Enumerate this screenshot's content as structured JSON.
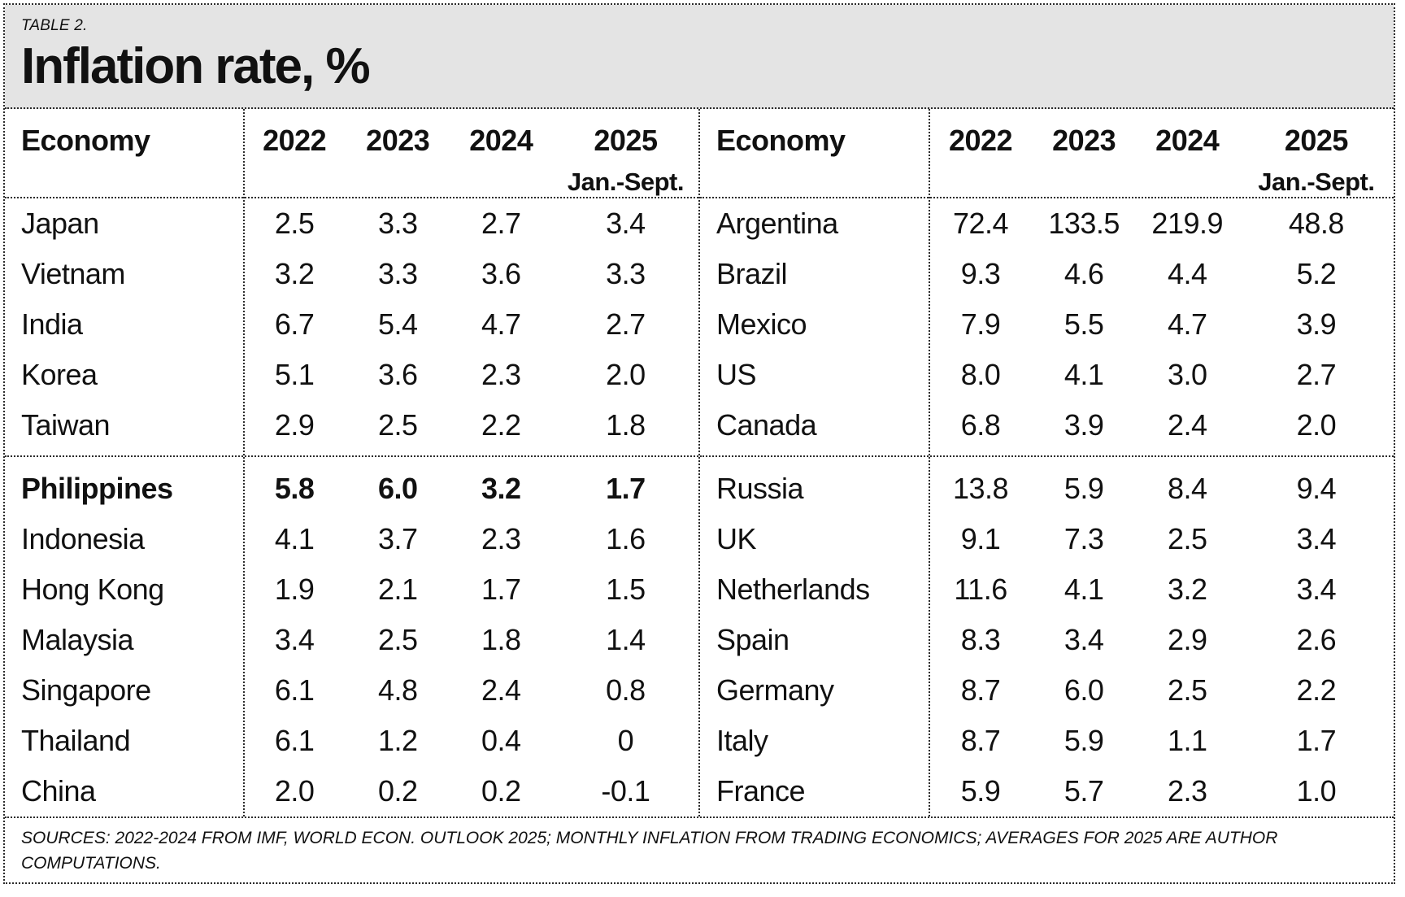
{
  "table_label": "TABLE 2.",
  "title": "Inflation rate, %",
  "header": {
    "economy": "Economy",
    "years": [
      "2022",
      "2023",
      "2024"
    ],
    "year_final": "2025",
    "year_final_sub": "Jan.-Sept."
  },
  "footer": {
    "line1": "SOURCES: 2022-2024 FROM IMF, WORLD ECON. OUTLOOK 2025; MONTHLY INFLATION FROM TRADING ECONOMICS; AVERAGES FOR 2025 ARE AUTHOR",
    "line2": "COMPUTATIONS."
  },
  "colors": {
    "title_bg": "#e4e4e4",
    "rule": "#2b2b2b",
    "text": "#111111"
  },
  "chart_data": {
    "type": "table",
    "title": "Inflation rate, %",
    "table_label": "TABLE 2.",
    "columns": [
      "Economy",
      "2022",
      "2023",
      "2024",
      "2025 Jan.-Sept."
    ],
    "tables": [
      {
        "name": "left",
        "groups": [
          [
            {
              "economy": "Japan",
              "values": [
                "2.5",
                "3.3",
                "2.7",
                "3.4"
              ],
              "bold": false
            },
            {
              "economy": "Vietnam",
              "values": [
                "3.2",
                "3.3",
                "3.6",
                "3.3"
              ],
              "bold": false
            },
            {
              "economy": "India",
              "values": [
                "6.7",
                "5.4",
                "4.7",
                "2.7"
              ],
              "bold": false
            },
            {
              "economy": "Korea",
              "values": [
                "5.1",
                "3.6",
                "2.3",
                "2.0"
              ],
              "bold": false
            },
            {
              "economy": "Taiwan",
              "values": [
                "2.9",
                "2.5",
                "2.2",
                "1.8"
              ],
              "bold": false
            }
          ],
          [
            {
              "economy": "Philippines",
              "values": [
                "5.8",
                "6.0",
                "3.2",
                "1.7"
              ],
              "bold": true
            },
            {
              "economy": "Indonesia",
              "values": [
                "4.1",
                "3.7",
                "2.3",
                "1.6"
              ],
              "bold": false
            },
            {
              "economy": "Hong Kong",
              "values": [
                "1.9",
                "2.1",
                "1.7",
                "1.5"
              ],
              "bold": false
            },
            {
              "economy": "Malaysia",
              "values": [
                "3.4",
                "2.5",
                "1.8",
                "1.4"
              ],
              "bold": false
            },
            {
              "economy": "Singapore",
              "values": [
                "6.1",
                "4.8",
                "2.4",
                "0.8"
              ],
              "bold": false
            },
            {
              "economy": "Thailand",
              "values": [
                "6.1",
                "1.2",
                "0.4",
                "0"
              ],
              "bold": false
            },
            {
              "economy": "China",
              "values": [
                "2.0",
                "0.2",
                "0.2",
                "-0.1"
              ],
              "bold": false
            }
          ]
        ]
      },
      {
        "name": "right",
        "groups": [
          [
            {
              "economy": "Argentina",
              "values": [
                "72.4",
                "133.5",
                "219.9",
                "48.8"
              ],
              "bold": false
            },
            {
              "economy": "Brazil",
              "values": [
                "9.3",
                "4.6",
                "4.4",
                "5.2"
              ],
              "bold": false
            },
            {
              "economy": "Mexico",
              "values": [
                "7.9",
                "5.5",
                "4.7",
                "3.9"
              ],
              "bold": false
            },
            {
              "economy": "US",
              "values": [
                "8.0",
                "4.1",
                "3.0",
                "2.7"
              ],
              "bold": false
            },
            {
              "economy": "Canada",
              "values": [
                "6.8",
                "3.9",
                "2.4",
                "2.0"
              ],
              "bold": false
            }
          ],
          [
            {
              "economy": "Russia",
              "values": [
                "13.8",
                "5.9",
                "8.4",
                "9.4"
              ],
              "bold": false
            },
            {
              "economy": "UK",
              "values": [
                "9.1",
                "7.3",
                "2.5",
                "3.4"
              ],
              "bold": false
            },
            {
              "economy": "Netherlands",
              "values": [
                "11.6",
                "4.1",
                "3.2",
                "3.4"
              ],
              "bold": false
            },
            {
              "economy": "Spain",
              "values": [
                "8.3",
                "3.4",
                "2.9",
                "2.6"
              ],
              "bold": false
            },
            {
              "economy": "Germany",
              "values": [
                "8.7",
                "6.0",
                "2.5",
                "2.2"
              ],
              "bold": false
            },
            {
              "economy": "Italy",
              "values": [
                "8.7",
                "5.9",
                "1.1",
                "1.7"
              ],
              "bold": false
            },
            {
              "economy": "France",
              "values": [
                "5.9",
                "5.7",
                "2.3",
                "1.0"
              ],
              "bold": false
            }
          ]
        ]
      }
    ]
  }
}
